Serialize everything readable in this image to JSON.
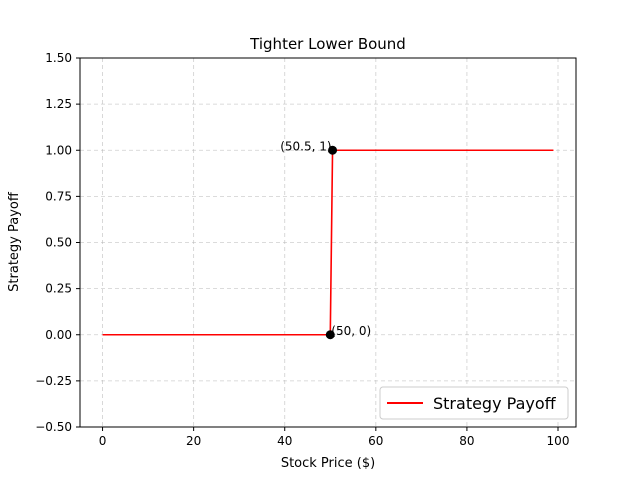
{
  "chart_data": {
    "type": "line",
    "title": "Tighter Lower Bound",
    "xlabel": "Stock Price ($)",
    "ylabel": "Strategy Payoff",
    "xlim": [
      -4.95,
      103.95
    ],
    "ylim": [
      -0.5,
      1.5
    ],
    "xticks": [
      0,
      20,
      40,
      60,
      80,
      100
    ],
    "yticks": [
      -0.5,
      -0.25,
      0.0,
      0.25,
      0.5,
      0.75,
      1.0,
      1.25,
      1.5
    ],
    "xtick_labels": [
      "0",
      "20",
      "40",
      "60",
      "80",
      "100"
    ],
    "ytick_labels": [
      "−0.50",
      "−0.25",
      "0.00",
      "0.25",
      "0.50",
      "0.75",
      "1.00",
      "1.25",
      "1.50"
    ],
    "grid": true,
    "legend_position": "lower-right",
    "series": [
      {
        "name": "Strategy Payoff",
        "color": "#ff0000",
        "x": [
          0,
          50,
          50.5,
          99
        ],
        "y": [
          0,
          0,
          1,
          1
        ]
      }
    ],
    "points": [
      {
        "x": 50,
        "y": 0,
        "color": "#000000"
      },
      {
        "x": 50.5,
        "y": 1,
        "color": "#000000"
      }
    ],
    "annotations": [
      {
        "text": "(50, 0)",
        "x": 50,
        "y": 0,
        "anchor": "start"
      },
      {
        "text": "(50.5, 1)",
        "x": 50.5,
        "y": 1,
        "anchor": "end"
      }
    ]
  }
}
